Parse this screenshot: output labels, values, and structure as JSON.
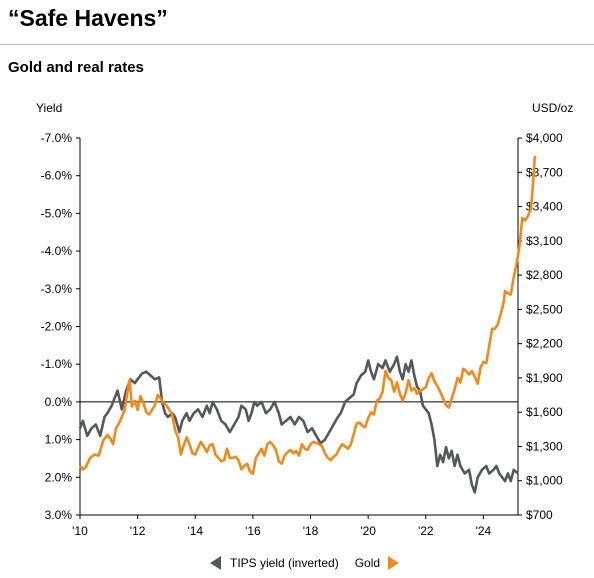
{
  "header": {
    "title": "“Safe Havens”",
    "subtitle": "Gold and real rates"
  },
  "chart_data": {
    "type": "line",
    "left_axis": {
      "label": "Yield",
      "inverted": true,
      "range": [
        -7.0,
        3.0
      ],
      "ticks": [
        "-7.0%",
        "-6.0%",
        "-5.0%",
        "-4.0%",
        "-3.0%",
        "-2.0%",
        "-1.0%",
        "0.0%",
        "1.0%",
        "2.0%",
        "3.0%"
      ]
    },
    "right_axis": {
      "label": "USD/oz",
      "range": [
        700,
        4000
      ],
      "ticks": [
        "$4,000",
        "$3,700",
        "$3,400",
        "$3,100",
        "$2,800",
        "$2,500",
        "$2,200",
        "$1,900",
        "$1,600",
        "$1,300",
        "$1,000",
        "$700"
      ]
    },
    "x_axis": {
      "range": [
        2010,
        2025.2
      ],
      "ticks": [
        "'10",
        "'12",
        "'14",
        "'16",
        "'18",
        "'20",
        "'22",
        "'24"
      ]
    },
    "series": [
      {
        "name": "TIPS yield (inverted)",
        "axis": "left",
        "color": "#55575a",
        "points": [
          [
            2010.0,
            0.7
          ],
          [
            2010.1,
            0.5
          ],
          [
            2010.25,
            0.9
          ],
          [
            2010.4,
            0.7
          ],
          [
            2010.55,
            0.6
          ],
          [
            2010.7,
            0.9
          ],
          [
            2010.85,
            0.4
          ],
          [
            2010.95,
            0.3
          ],
          [
            2011.1,
            0.1
          ],
          [
            2011.3,
            -0.3
          ],
          [
            2011.45,
            0.2
          ],
          [
            2011.6,
            -0.3
          ],
          [
            2011.75,
            -0.6
          ],
          [
            2011.9,
            -0.5
          ],
          [
            2012.0,
            -0.6
          ],
          [
            2012.15,
            -0.75
          ],
          [
            2012.3,
            -0.8
          ],
          [
            2012.45,
            -0.7
          ],
          [
            2012.6,
            -0.6
          ],
          [
            2012.75,
            -0.65
          ],
          [
            2012.85,
            0.0
          ],
          [
            2012.95,
            0.3
          ],
          [
            2013.05,
            0.4
          ],
          [
            2013.2,
            0.3
          ],
          [
            2013.3,
            0.4
          ],
          [
            2013.45,
            0.8
          ],
          [
            2013.55,
            0.5
          ],
          [
            2013.7,
            0.3
          ],
          [
            2013.8,
            0.5
          ],
          [
            2013.95,
            0.3
          ],
          [
            2014.1,
            0.2
          ],
          [
            2014.25,
            0.4
          ],
          [
            2014.4,
            0.1
          ],
          [
            2014.5,
            0.3
          ],
          [
            2014.6,
            0.0
          ],
          [
            2014.75,
            0.2
          ],
          [
            2014.9,
            0.5
          ],
          [
            2015.05,
            0.6
          ],
          [
            2015.2,
            0.8
          ],
          [
            2015.35,
            0.6
          ],
          [
            2015.5,
            0.4
          ],
          [
            2015.6,
            0.1
          ],
          [
            2015.75,
            0.2
          ],
          [
            2015.85,
            0.5
          ],
          [
            2015.95,
            0.3
          ],
          [
            2016.05,
            0.0
          ],
          [
            2016.15,
            0.1
          ],
          [
            2016.3,
            0.0
          ],
          [
            2016.45,
            0.3
          ],
          [
            2016.6,
            0.2
          ],
          [
            2016.75,
            0.0
          ],
          [
            2016.9,
            0.3
          ],
          [
            2017.0,
            0.6
          ],
          [
            2017.15,
            0.5
          ],
          [
            2017.3,
            0.4
          ],
          [
            2017.45,
            0.6
          ],
          [
            2017.6,
            0.4
          ],
          [
            2017.75,
            0.5
          ],
          [
            2017.9,
            0.8
          ],
          [
            2018.05,
            0.7
          ],
          [
            2018.2,
            0.9
          ],
          [
            2018.35,
            1.1
          ],
          [
            2018.5,
            1.0
          ],
          [
            2018.65,
            0.8
          ],
          [
            2018.8,
            0.6
          ],
          [
            2018.95,
            0.4
          ],
          [
            2019.05,
            0.3
          ],
          [
            2019.2,
            0.0
          ],
          [
            2019.35,
            -0.1
          ],
          [
            2019.5,
            -0.2
          ],
          [
            2019.6,
            -0.5
          ],
          [
            2019.75,
            -0.7
          ],
          [
            2019.9,
            -0.8
          ],
          [
            2020.0,
            -1.1
          ],
          [
            2020.1,
            -0.8
          ],
          [
            2020.2,
            -0.6
          ],
          [
            2020.35,
            -1.0
          ],
          [
            2020.5,
            -0.9
          ],
          [
            2020.6,
            -1.1
          ],
          [
            2020.75,
            -0.8
          ],
          [
            2020.9,
            -1.0
          ],
          [
            2021.0,
            -1.2
          ],
          [
            2021.1,
            -0.8
          ],
          [
            2021.2,
            -0.6
          ],
          [
            2021.3,
            -1.0
          ],
          [
            2021.4,
            -0.8
          ],
          [
            2021.5,
            -1.1
          ],
          [
            2021.6,
            -0.7
          ],
          [
            2021.7,
            -0.4
          ],
          [
            2021.8,
            -0.3
          ],
          [
            2021.9,
            0.1
          ],
          [
            2022.0,
            0.2
          ],
          [
            2022.1,
            0.3
          ],
          [
            2022.2,
            0.6
          ],
          [
            2022.3,
            1.0
          ],
          [
            2022.4,
            1.7
          ],
          [
            2022.5,
            1.4
          ],
          [
            2022.6,
            1.6
          ],
          [
            2022.7,
            1.2
          ],
          [
            2022.8,
            1.5
          ],
          [
            2022.9,
            1.3
          ],
          [
            2023.0,
            1.7
          ],
          [
            2023.1,
            1.4
          ],
          [
            2023.2,
            1.7
          ],
          [
            2023.35,
            1.9
          ],
          [
            2023.5,
            1.8
          ],
          [
            2023.6,
            2.2
          ],
          [
            2023.7,
            2.4
          ],
          [
            2023.8,
            2.0
          ],
          [
            2023.95,
            1.8
          ],
          [
            2024.1,
            1.7
          ],
          [
            2024.2,
            1.9
          ],
          [
            2024.35,
            1.8
          ],
          [
            2024.45,
            1.7
          ],
          [
            2024.55,
            1.9
          ],
          [
            2024.65,
            2.0
          ],
          [
            2024.75,
            2.1
          ],
          [
            2024.85,
            1.9
          ],
          [
            2024.95,
            2.1
          ],
          [
            2025.05,
            1.8
          ],
          [
            2025.2,
            1.9
          ]
        ]
      },
      {
        "name": "Gold",
        "axis": "right",
        "color": "#f08a1c",
        "points": [
          [
            2010.0,
            1130
          ],
          [
            2010.1,
            1100
          ],
          [
            2010.2,
            1120
          ],
          [
            2010.35,
            1200
          ],
          [
            2010.5,
            1230
          ],
          [
            2010.65,
            1220
          ],
          [
            2010.8,
            1350
          ],
          [
            2010.95,
            1400
          ],
          [
            2011.05,
            1370
          ],
          [
            2011.15,
            1320
          ],
          [
            2011.25,
            1460
          ],
          [
            2011.35,
            1500
          ],
          [
            2011.45,
            1560
          ],
          [
            2011.55,
            1620
          ],
          [
            2011.65,
            1780
          ],
          [
            2011.72,
            1880
          ],
          [
            2011.8,
            1650
          ],
          [
            2011.9,
            1700
          ],
          [
            2012.0,
            1620
          ],
          [
            2012.1,
            1740
          ],
          [
            2012.2,
            1680
          ],
          [
            2012.3,
            1600
          ],
          [
            2012.4,
            1580
          ],
          [
            2012.5,
            1620
          ],
          [
            2012.6,
            1660
          ],
          [
            2012.7,
            1750
          ],
          [
            2012.8,
            1720
          ],
          [
            2012.9,
            1680
          ],
          [
            2013.0,
            1660
          ],
          [
            2013.1,
            1620
          ],
          [
            2013.2,
            1580
          ],
          [
            2013.3,
            1440
          ],
          [
            2013.4,
            1380
          ],
          [
            2013.5,
            1230
          ],
          [
            2013.6,
            1310
          ],
          [
            2013.7,
            1380
          ],
          [
            2013.8,
            1320
          ],
          [
            2013.9,
            1240
          ],
          [
            2014.0,
            1230
          ],
          [
            2014.1,
            1290
          ],
          [
            2014.2,
            1340
          ],
          [
            2014.3,
            1300
          ],
          [
            2014.4,
            1250
          ],
          [
            2014.5,
            1310
          ],
          [
            2014.6,
            1320
          ],
          [
            2014.7,
            1230
          ],
          [
            2014.8,
            1200
          ],
          [
            2014.9,
            1170
          ],
          [
            2015.0,
            1180
          ],
          [
            2015.1,
            1280
          ],
          [
            2015.2,
            1200
          ],
          [
            2015.3,
            1200
          ],
          [
            2015.4,
            1210
          ],
          [
            2015.5,
            1180
          ],
          [
            2015.6,
            1100
          ],
          [
            2015.7,
            1130
          ],
          [
            2015.8,
            1150
          ],
          [
            2015.9,
            1080
          ],
          [
            2016.0,
            1060
          ],
          [
            2016.1,
            1200
          ],
          [
            2016.2,
            1240
          ],
          [
            2016.3,
            1280
          ],
          [
            2016.4,
            1220
          ],
          [
            2016.5,
            1320
          ],
          [
            2016.6,
            1340
          ],
          [
            2016.7,
            1310
          ],
          [
            2016.8,
            1270
          ],
          [
            2016.9,
            1170
          ],
          [
            2017.0,
            1150
          ],
          [
            2017.1,
            1220
          ],
          [
            2017.2,
            1250
          ],
          [
            2017.3,
            1270
          ],
          [
            2017.4,
            1240
          ],
          [
            2017.5,
            1260
          ],
          [
            2017.6,
            1220
          ],
          [
            2017.7,
            1320
          ],
          [
            2017.8,
            1280
          ],
          [
            2017.9,
            1270
          ],
          [
            2018.0,
            1320
          ],
          [
            2018.1,
            1340
          ],
          [
            2018.2,
            1330
          ],
          [
            2018.3,
            1320
          ],
          [
            2018.4,
            1300
          ],
          [
            2018.5,
            1240
          ],
          [
            2018.6,
            1200
          ],
          [
            2018.7,
            1180
          ],
          [
            2018.8,
            1210
          ],
          [
            2018.9,
            1230
          ],
          [
            2019.0,
            1280
          ],
          [
            2019.1,
            1320
          ],
          [
            2019.2,
            1300
          ],
          [
            2019.3,
            1280
          ],
          [
            2019.4,
            1320
          ],
          [
            2019.5,
            1410
          ],
          [
            2019.6,
            1500
          ],
          [
            2019.7,
            1510
          ],
          [
            2019.8,
            1480
          ],
          [
            2019.9,
            1470
          ],
          [
            2020.0,
            1550
          ],
          [
            2020.1,
            1600
          ],
          [
            2020.2,
            1580
          ],
          [
            2020.3,
            1700
          ],
          [
            2020.4,
            1720
          ],
          [
            2020.5,
            1780
          ],
          [
            2020.6,
            1960
          ],
          [
            2020.7,
            1900
          ],
          [
            2020.8,
            1880
          ],
          [
            2020.9,
            1780
          ],
          [
            2021.0,
            1860
          ],
          [
            2021.1,
            1760
          ],
          [
            2021.2,
            1700
          ],
          [
            2021.3,
            1770
          ],
          [
            2021.4,
            1880
          ],
          [
            2021.5,
            1790
          ],
          [
            2021.6,
            1810
          ],
          [
            2021.7,
            1760
          ],
          [
            2021.8,
            1790
          ],
          [
            2021.9,
            1800
          ],
          [
            2022.0,
            1820
          ],
          [
            2022.1,
            1900
          ],
          [
            2022.2,
            1940
          ],
          [
            2022.3,
            1870
          ],
          [
            2022.4,
            1830
          ],
          [
            2022.5,
            1780
          ],
          [
            2022.6,
            1720
          ],
          [
            2022.7,
            1660
          ],
          [
            2022.8,
            1640
          ],
          [
            2022.9,
            1720
          ],
          [
            2023.0,
            1800
          ],
          [
            2023.1,
            1900
          ],
          [
            2023.2,
            1860
          ],
          [
            2023.3,
            1980
          ],
          [
            2023.4,
            1960
          ],
          [
            2023.5,
            1930
          ],
          [
            2023.6,
            1960
          ],
          [
            2023.7,
            1910
          ],
          [
            2023.8,
            1850
          ],
          [
            2023.9,
            1990
          ],
          [
            2024.0,
            2040
          ],
          [
            2024.1,
            2030
          ],
          [
            2024.2,
            2180
          ],
          [
            2024.3,
            2330
          ],
          [
            2024.4,
            2330
          ],
          [
            2024.5,
            2370
          ],
          [
            2024.6,
            2460
          ],
          [
            2024.7,
            2560
          ],
          [
            2024.75,
            2660
          ],
          [
            2024.85,
            2640
          ],
          [
            2024.95,
            2630
          ],
          [
            2025.05,
            2780
          ],
          [
            2025.15,
            2900
          ],
          [
            2025.25,
            3050
          ],
          [
            2025.35,
            3300
          ],
          [
            2025.45,
            3280
          ],
          [
            2025.55,
            3320
          ],
          [
            2025.65,
            3380
          ],
          [
            2025.72,
            3600
          ],
          [
            2025.78,
            3830
          ],
          [
            2025.82,
            3840
          ]
        ]
      }
    ]
  },
  "legend": {
    "items": [
      "TIPS yield (inverted)",
      "Gold"
    ]
  }
}
